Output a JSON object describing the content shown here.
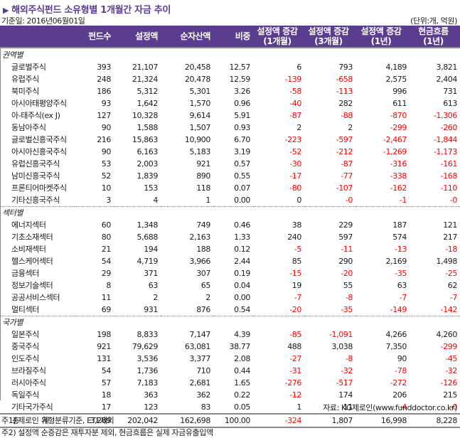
{
  "header": {
    "title": "해외주식펀드 소유형별 1개월간 자금 추이",
    "title_marker": "▶",
    "base_date": "기준일: 2016년06월01일",
    "unit": "(단위:개, 억원)"
  },
  "colors": {
    "accent": "#5a3d8f",
    "negative": "#ff0000",
    "text": "#1a1a1a",
    "rule": "#8a8a8a"
  },
  "table": {
    "columns": [
      {
        "label": ""
      },
      {
        "label": "펀드수"
      },
      {
        "label": "설정액"
      },
      {
        "label": "순자산액"
      },
      {
        "label": "비중"
      },
      {
        "line1": "설정액 증감",
        "line2": "(1개월)"
      },
      {
        "line1": "설정액 증감",
        "line2": "(3개월)"
      },
      {
        "line1": "설정액 증감",
        "line2": "(1년)"
      },
      {
        "line1": "현금흐름",
        "line2": "(1년)"
      }
    ],
    "sections": [
      {
        "label": "권역별",
        "rows": [
          {
            "name": "글로벌주식",
            "funds": "393",
            "setup": "21,107",
            "nav": "20,458",
            "weight": "12.57",
            "chg1m": "6",
            "chg3m": "793",
            "chg1y": "4,189",
            "cf1y": "3,821"
          },
          {
            "name": "유럽주식",
            "funds": "248",
            "setup": "21,324",
            "nav": "20,478",
            "weight": "12.59",
            "chg1m": "-139",
            "chg3m": "-658",
            "chg1y": "2,575",
            "cf1y": "2,404"
          },
          {
            "name": "북미주식",
            "funds": "186",
            "setup": "5,312",
            "nav": "5,301",
            "weight": "3.26",
            "chg1m": "-58",
            "chg3m": "-113",
            "chg1y": "996",
            "cf1y": "731"
          },
          {
            "name": "아시아태평양주식",
            "funds": "93",
            "setup": "1,642",
            "nav": "1,570",
            "weight": "0.96",
            "chg1m": "-40",
            "chg3m": "282",
            "chg1y": "611",
            "cf1y": "613"
          },
          {
            "name": "아-태주식(ex J)",
            "funds": "127",
            "setup": "10,328",
            "nav": "9,614",
            "weight": "5.91",
            "chg1m": "-87",
            "chg3m": "-88",
            "chg1y": "-870",
            "cf1y": "-1,306"
          },
          {
            "name": "동남아주식",
            "funds": "90",
            "setup": "1,588",
            "nav": "1,507",
            "weight": "0.93",
            "chg1m": "2",
            "chg3m": "2",
            "chg1y": "-299",
            "cf1y": "-260"
          },
          {
            "name": "글로벌신흥국주식",
            "funds": "216",
            "setup": "15,863",
            "nav": "10,900",
            "weight": "6.70",
            "chg1m": "-223",
            "chg3m": "-597",
            "chg1y": "-2,467",
            "cf1y": "-1,844"
          },
          {
            "name": "아시아신흥국주식",
            "funds": "90",
            "setup": "6,163",
            "nav": "5,183",
            "weight": "3.19",
            "chg1m": "-52",
            "chg3m": "-212",
            "chg1y": "-1,269",
            "cf1y": "-1,173"
          },
          {
            "name": "유럽신흥국주식",
            "funds": "53",
            "setup": "2,003",
            "nav": "921",
            "weight": "0.57",
            "chg1m": "-30",
            "chg3m": "-87",
            "chg1y": "-316",
            "cf1y": "-161"
          },
          {
            "name": "남미신흥국주식",
            "funds": "52",
            "setup": "1,839",
            "nav": "890",
            "weight": "0.55",
            "chg1m": "-17",
            "chg3m": "-77",
            "chg1y": "-338",
            "cf1y": "-168"
          },
          {
            "name": "프론티어마켓주식",
            "funds": "10",
            "setup": "153",
            "nav": "118",
            "weight": "0.07",
            "chg1m": "-80",
            "chg3m": "-107",
            "chg1y": "-162",
            "cf1y": "-110"
          },
          {
            "name": "기타신흥국주식",
            "funds": "3",
            "setup": "4",
            "nav": "1",
            "weight": "0.00",
            "chg1m": "0",
            "chg3m": "-0",
            "chg1y": "-1",
            "cf1y": "-0"
          }
        ]
      },
      {
        "label": "섹터별",
        "rows": [
          {
            "name": "에너지섹터",
            "funds": "60",
            "setup": "1,348",
            "nav": "749",
            "weight": "0.46",
            "chg1m": "38",
            "chg3m": "229",
            "chg1y": "187",
            "cf1y": "121"
          },
          {
            "name": "기초소재섹터",
            "funds": "80",
            "setup": "5,688",
            "nav": "2,163",
            "weight": "1.33",
            "chg1m": "240",
            "chg3m": "597",
            "chg1y": "574",
            "cf1y": "217"
          },
          {
            "name": "소비재섹터",
            "funds": "21",
            "setup": "194",
            "nav": "188",
            "weight": "0.12",
            "chg1m": "-5",
            "chg3m": "-11",
            "chg1y": "-13",
            "cf1y": "-18"
          },
          {
            "name": "헬스케어섹터",
            "funds": "54",
            "setup": "4,719",
            "nav": "3,966",
            "weight": "2.44",
            "chg1m": "85",
            "chg3m": "290",
            "chg1y": "2,169",
            "cf1y": "1,498"
          },
          {
            "name": "금융섹터",
            "funds": "29",
            "setup": "371",
            "nav": "307",
            "weight": "0.19",
            "chg1m": "-15",
            "chg3m": "-20",
            "chg1y": "-35",
            "cf1y": "-25"
          },
          {
            "name": "정보기술섹터",
            "funds": "8",
            "setup": "63",
            "nav": "65",
            "weight": "0.04",
            "chg1m": "19",
            "chg3m": "55",
            "chg1y": "63",
            "cf1y": "62"
          },
          {
            "name": "공공서비스섹터",
            "funds": "11",
            "setup": "2",
            "nav": "2",
            "weight": "0.00",
            "chg1m": "-7",
            "chg3m": "-8",
            "chg1y": "-7",
            "cf1y": "-7"
          },
          {
            "name": "멀티섹터",
            "funds": "69",
            "setup": "931",
            "nav": "876",
            "weight": "0.54",
            "chg1m": "-20",
            "chg3m": "-35",
            "chg1y": "-149",
            "cf1y": "-142"
          }
        ]
      },
      {
        "label": "국가별",
        "rows": [
          {
            "name": "일본주식",
            "funds": "198",
            "setup": "8,833",
            "nav": "7,147",
            "weight": "4.39",
            "chg1m": "-85",
            "chg3m": "-1,091",
            "chg1y": "4,266",
            "cf1y": "4,260"
          },
          {
            "name": "중국주식",
            "funds": "921",
            "setup": "79,629",
            "nav": "63,081",
            "weight": "38.77",
            "chg1m": "488",
            "chg3m": "3,038",
            "chg1y": "7,350",
            "cf1y": "-299"
          },
          {
            "name": "인도주식",
            "funds": "131",
            "setup": "3,536",
            "nav": "3,377",
            "weight": "2.08",
            "chg1m": "-27",
            "chg3m": "-8",
            "chg1y": "90",
            "cf1y": "-45"
          },
          {
            "name": "브라질주식",
            "funds": "54",
            "setup": "1,736",
            "nav": "710",
            "weight": "0.44",
            "chg1m": "-31",
            "chg3m": "-32",
            "chg1y": "-78",
            "cf1y": "-32"
          },
          {
            "name": "러시아주식",
            "funds": "57",
            "setup": "7,183",
            "nav": "2,681",
            "weight": "1.65",
            "chg1m": "-276",
            "chg3m": "-517",
            "chg1y": "-272",
            "cf1y": "-126"
          },
          {
            "name": "독일주식",
            "funds": "18",
            "setup": "363",
            "nav": "362",
            "weight": "0.22",
            "chg1m": "-12",
            "chg3m": "174",
            "chg1y": "206",
            "cf1y": "215"
          },
          {
            "name": "기타국가주식",
            "funds": "17",
            "setup": "123",
            "nav": "83",
            "weight": "0.05",
            "chg1m": "1",
            "chg3m": "11",
            "chg1y": "-4",
            "cf1y": "-0"
          }
        ]
      }
    ],
    "total": {
      "name": "총 계",
      "funds": "3,289",
      "setup": "202,042",
      "nav": "162,698",
      "weight": "100.00",
      "chg1m": "-324",
      "chg3m": "1,807",
      "chg1y": "16,998",
      "cf1y": "8,228"
    }
  },
  "footer": {
    "source": "자료: KG제로인(www.funddoctor.co.kr)",
    "notes": [
      "주1) 제로인 유형분류기준, ETF제외",
      "주2) 설정액 순증감은 재투자분 제외, 현금흐름은 실제 자금유출입액"
    ]
  }
}
